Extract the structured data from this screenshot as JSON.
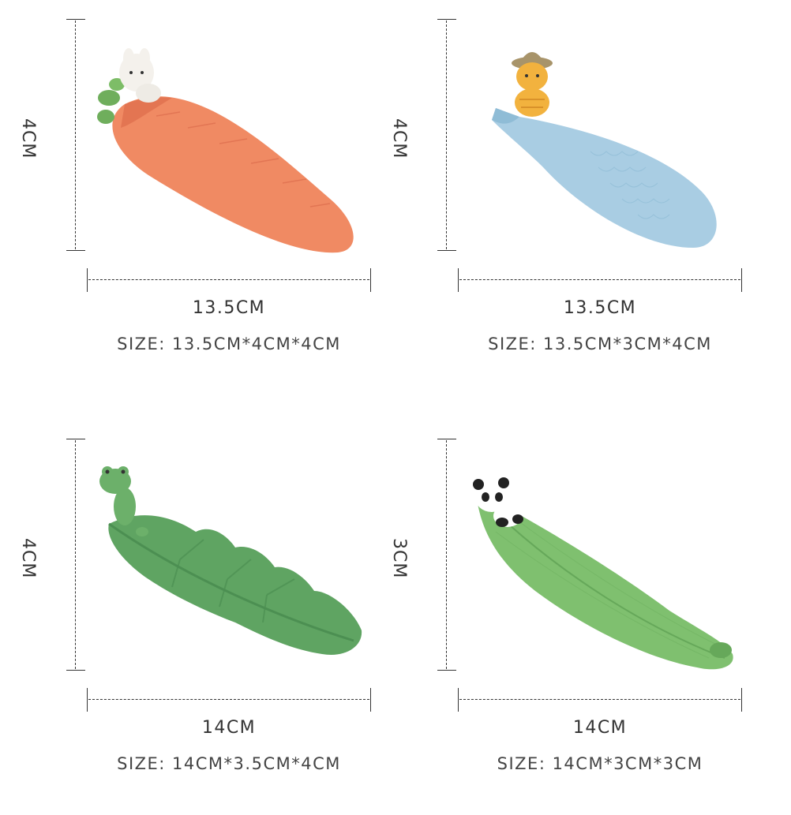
{
  "products": [
    {
      "height_label": "4CM",
      "length_label": "13.5CM",
      "size_label": "SIZE: 13.5CM*4CM*4CM",
      "figure": "bunny",
      "tray": "carrot",
      "colors": {
        "tray": "#f08a63",
        "tray_dark": "#e37552",
        "leaf": "#6fae5c",
        "figure": "#f4f1ec"
      }
    },
    {
      "height_label": "4CM",
      "length_label": "13.5CM",
      "size_label": "SIZE: 13.5CM*3CM*4CM",
      "figure": "cat-with-hat",
      "tray": "fish",
      "colors": {
        "tray": "#a9cde3",
        "tray_dark": "#8fbcd6",
        "figure": "#f2b23e",
        "hat": "#a8946a"
      }
    },
    {
      "height_label": "4CM",
      "length_label": "14CM",
      "size_label": "SIZE: 14CM*3.5CM*4CM",
      "figure": "frog",
      "tray": "leaf",
      "colors": {
        "tray": "#5fa462",
        "tray_dark": "#4c8f52",
        "figure": "#6cb06a"
      }
    },
    {
      "height_label": "3CM",
      "length_label": "14CM",
      "size_label": "SIZE: 14CM*3CM*3CM",
      "figure": "panda",
      "tray": "bamboo-leaf",
      "colors": {
        "tray": "#7fc06f",
        "tray_dark": "#66a85a",
        "figure": "#ffffff",
        "figure_dark": "#222222"
      }
    }
  ]
}
